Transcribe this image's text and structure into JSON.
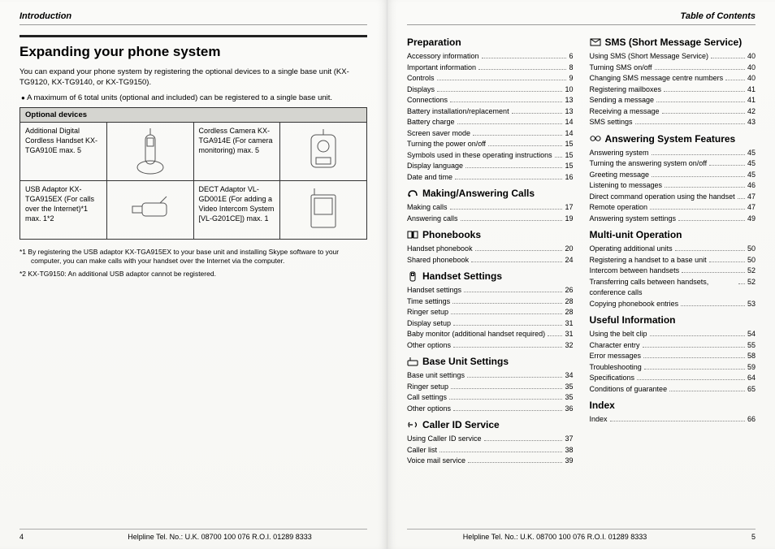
{
  "left": {
    "header": "Introduction",
    "title": "Expanding your phone system",
    "intro": "You can expand your phone system by registering the optional devices to a single base unit (KX-TG9120, KX-TG9140, or KX-TG9150).",
    "bullet": "A maximum of 6 total units (optional and included) can be registered to a single base unit.",
    "tableHeader": "Optional devices",
    "devices": [
      {
        "text": "Additional Digital\nCordless Handset\nKX-TGA910E\nmax. 5"
      },
      {
        "text": "Cordless Camera\nKX-TGA914E\n(For camera\nmonitoring)\nmax. 5"
      },
      {
        "text": "USB Adaptor\nKX-TGA915EX\n(For calls over the\nInternet)*1\nmax. 1*2"
      },
      {
        "text": "DECT Adaptor\nVL-GD001E\n(For adding a Video\nIntercom System\n[VL-G201CE])\nmax. 1"
      }
    ],
    "note1": "*1 By registering the USB adaptor KX-TGA915EX to your base unit and installing Skype software to your computer, you can make calls with your handset over the Internet via the computer.",
    "note2": "*2 KX-TG9150: An additional USB adaptor cannot be registered.",
    "pageNum": "4",
    "helpline": "Helpline Tel. No.: U.K. 08700 100 076  R.O.I. 01289 8333"
  },
  "right": {
    "header": "Table of Contents",
    "pageNum": "5",
    "helpline": "Helpline Tel. No.: U.K. 08700 100 076  R.O.I. 01289 8333",
    "col1": [
      {
        "h": "Preparation",
        "icon": ""
      },
      {
        "t": "Accessory information",
        "p": "6"
      },
      {
        "t": "Important information",
        "p": "8"
      },
      {
        "t": "Controls",
        "p": "9"
      },
      {
        "t": "Displays",
        "p": "10"
      },
      {
        "t": "Connections",
        "p": "13"
      },
      {
        "t": "Battery installation/replacement",
        "p": "13"
      },
      {
        "t": "Battery charge",
        "p": "14"
      },
      {
        "t": "Screen saver mode",
        "p": "14"
      },
      {
        "t": "Turning the power on/off",
        "p": "15"
      },
      {
        "t": "Symbols used in these operating instructions",
        "p": "15"
      },
      {
        "t": "Display language",
        "p": "15"
      },
      {
        "t": "Date and time",
        "p": "16"
      },
      {
        "h": "Making/Answering Calls",
        "icon": "phone"
      },
      {
        "t": "Making calls",
        "p": "17"
      },
      {
        "t": "Answering calls",
        "p": "19"
      },
      {
        "h": "Phonebooks",
        "icon": "book"
      },
      {
        "t": "Handset phonebook",
        "p": "20"
      },
      {
        "t": "Shared phonebook",
        "p": "24"
      },
      {
        "h": "Handset Settings",
        "icon": "handset"
      },
      {
        "t": "Handset settings",
        "p": "26"
      },
      {
        "t": "Time settings",
        "p": "28"
      },
      {
        "t": "Ringer setup",
        "p": "28"
      },
      {
        "t": "Display setup",
        "p": "31"
      },
      {
        "t": "Baby monitor (additional handset required)",
        "p": "31"
      },
      {
        "t": "Other options",
        "p": "32"
      },
      {
        "h": "Base Unit Settings",
        "icon": "base"
      },
      {
        "t": "Base unit settings",
        "p": "34"
      },
      {
        "t": "Ringer setup",
        "p": "35"
      },
      {
        "t": "Call settings",
        "p": "35"
      },
      {
        "t": "Other options",
        "p": "36"
      },
      {
        "h": "Caller ID Service",
        "icon": "cid"
      },
      {
        "t": "Using Caller ID service",
        "p": "37"
      },
      {
        "t": "Caller list",
        "p": "38"
      },
      {
        "t": "Voice mail service",
        "p": "39"
      }
    ],
    "col2": [
      {
        "h": "SMS (Short Message Service)",
        "icon": "mail"
      },
      {
        "t": "Using SMS (Short Message Service)",
        "p": "40"
      },
      {
        "t": "Turning SMS on/off",
        "p": "40"
      },
      {
        "t": "Changing SMS message centre numbers",
        "p": "40"
      },
      {
        "t": "Registering mailboxes",
        "p": "41"
      },
      {
        "t": "Sending a message",
        "p": "41"
      },
      {
        "t": "Receiving a message",
        "p": "42"
      },
      {
        "t": "SMS settings",
        "p": "43"
      },
      {
        "h": "Answering System Features",
        "icon": "tape"
      },
      {
        "t": "Answering system",
        "p": "45"
      },
      {
        "t": "Turning the answering system on/off",
        "p": "45"
      },
      {
        "t": "Greeting message",
        "p": "45"
      },
      {
        "t": "Listening to messages",
        "p": "46"
      },
      {
        "t": "Direct command operation using the handset",
        "p": "47"
      },
      {
        "t": "Remote operation",
        "p": "47"
      },
      {
        "t": "Answering system settings",
        "p": "49"
      },
      {
        "h": "Multi-unit Operation",
        "icon": ""
      },
      {
        "t": "Operating additional units",
        "p": "50"
      },
      {
        "t": "Registering a handset to a base unit",
        "p": "50"
      },
      {
        "t": "Intercom between handsets",
        "p": "52"
      },
      {
        "t": "Transferring calls between handsets, conference calls",
        "p": "52"
      },
      {
        "t": "Copying phonebook entries",
        "p": "53"
      },
      {
        "h": "Useful Information",
        "icon": ""
      },
      {
        "t": "Using the belt clip",
        "p": "54"
      },
      {
        "t": "Character entry",
        "p": "55"
      },
      {
        "t": "Error messages",
        "p": "58"
      },
      {
        "t": "Troubleshooting",
        "p": "59"
      },
      {
        "t": "Specifications",
        "p": "64"
      },
      {
        "t": "Conditions of guarantee",
        "p": "65"
      },
      {
        "h": "Index",
        "icon": ""
      },
      {
        "t": "Index",
        "p": "66"
      }
    ]
  }
}
